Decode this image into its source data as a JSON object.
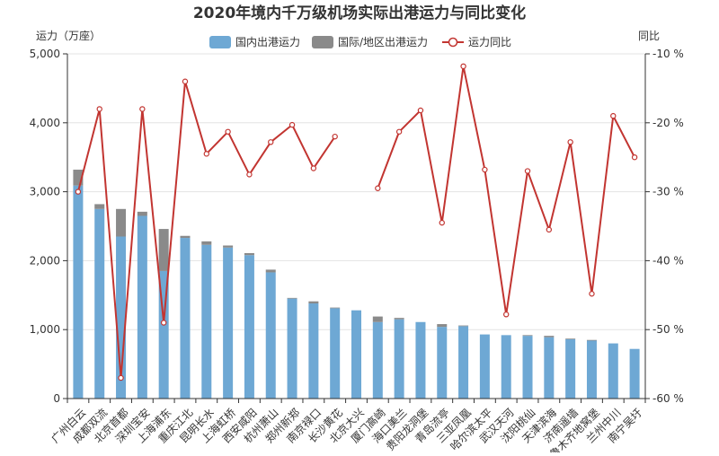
{
  "chart_data": {
    "type": "bar+line",
    "title": "2020年境内千万级机场实际出港运力与同比变化",
    "ylabel_left": "运力（万座）",
    "ylabel_right": "同比",
    "ylim_left": [
      0,
      5000
    ],
    "ylim_right": [
      -60,
      -10
    ],
    "yticks_left": [
      "0",
      "1,000",
      "2,000",
      "3,000",
      "4,000",
      "5,000"
    ],
    "yticks_right": [
      "-60 %",
      "-50 %",
      "-40 %",
      "-30 %",
      "-20 %",
      "-10 %"
    ],
    "legend": {
      "domestic": "国内出港运力",
      "international": "国际/地区出港运力",
      "yoy": "运力同比"
    },
    "colors": {
      "domestic": "#6ea8d4",
      "international": "#8a8a8a",
      "yoy": "#c23531"
    },
    "categories": [
      "广州白云",
      "成都双流",
      "北京首都",
      "深圳宝安",
      "上海浦东",
      "重庆江北",
      "昆明长水",
      "上海虹桥",
      "西安咸阳",
      "杭州萧山",
      "郑州新郑",
      "南京禄口",
      "长沙黄花",
      "北京大兴",
      "厦门高崎",
      "海口美兰",
      "贵阳龙洞堡",
      "青岛流亭",
      "三亚凤凰",
      "哈尔滨太平",
      "武汉天河",
      "沈阳桃仙",
      "天津滨海",
      "济南遥墙",
      "乌鲁木齐地窝堡",
      "兰州中川",
      "南宁吴圩"
    ],
    "series": [
      {
        "name": "国内出港运力",
        "values": [
          3090,
          2750,
          2350,
          2650,
          1850,
          2330,
          2230,
          2190,
          2080,
          1830,
          1450,
          1380,
          1310,
          1280,
          1110,
          1150,
          1110,
          1040,
          1050,
          930,
          920,
          910,
          890,
          860,
          840,
          800,
          720
        ]
      },
      {
        "name": "国际/地区出港运力",
        "values": [
          230,
          70,
          400,
          60,
          610,
          30,
          50,
          30,
          30,
          40,
          10,
          30,
          10,
          0,
          80,
          20,
          0,
          40,
          10,
          0,
          0,
          10,
          20,
          10,
          10,
          0,
          0
        ]
      },
      {
        "name": "运力同比",
        "values": [
          -30,
          -18,
          -57,
          -18,
          -49,
          -14,
          -24.5,
          -21.3,
          -27.5,
          -22.8,
          -20.3,
          -26.6,
          -22,
          null,
          -29.5,
          -21.3,
          -18.2,
          -34.5,
          -11.8,
          -26.8,
          -47.8,
          -27,
          -35.5,
          -22.8,
          -44.8,
          -19,
          -25
        ]
      }
    ]
  }
}
